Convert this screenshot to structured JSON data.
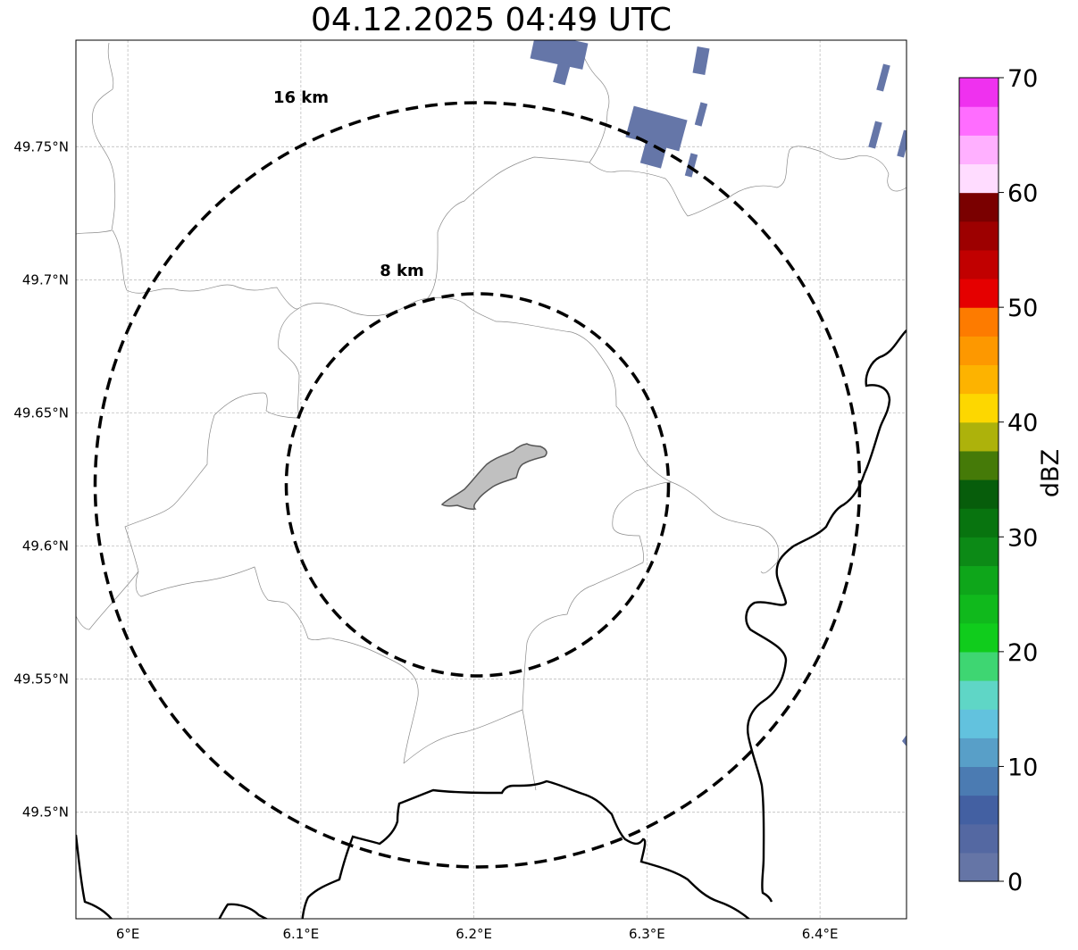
{
  "title": "04.12.2025 04:49 UTC",
  "map": {
    "lon_ticks": [
      {
        "value": 6.0,
        "label": "6°E"
      },
      {
        "value": 6.1,
        "label": "6.1°E"
      },
      {
        "value": 6.2,
        "label": "6.2°E"
      },
      {
        "value": 6.3,
        "label": "6.3°E"
      },
      {
        "value": 6.4,
        "label": "6.4°E"
      }
    ],
    "lat_ticks": [
      {
        "value": 49.75,
        "label": "49.75°N"
      },
      {
        "value": 49.7,
        "label": "49.7°N"
      },
      {
        "value": 49.65,
        "label": "49.65°N"
      },
      {
        "value": 49.6,
        "label": "49.6°N"
      },
      {
        "value": 49.55,
        "label": "49.55°N"
      },
      {
        "value": 49.5,
        "label": "49.5°N"
      }
    ],
    "extent": {
      "lon_min": 5.97,
      "lon_max": 6.45,
      "lat_min": 49.46,
      "lat_max": 49.79
    },
    "grid": true,
    "range_rings": [
      {
        "label": "16 km",
        "radius_km": 16
      },
      {
        "label": "8 km",
        "radius_km": 8
      }
    ],
    "radar_center": {
      "lon": 6.202,
      "lat": 49.623
    },
    "echo_color": "#6576a8"
  },
  "colorbar": {
    "label": "dBZ",
    "min": 0,
    "max": 70,
    "ticks": [
      {
        "value": 0,
        "label": "0"
      },
      {
        "value": 10,
        "label": "10"
      },
      {
        "value": 20,
        "label": "20"
      },
      {
        "value": 30,
        "label": "30"
      },
      {
        "value": 40,
        "label": "40"
      },
      {
        "value": 50,
        "label": "50"
      },
      {
        "value": 60,
        "label": "60"
      },
      {
        "value": 70,
        "label": "70"
      }
    ],
    "colors": [
      "#6575a6",
      "#5468a2",
      "#4360a2",
      "#4b7bb2",
      "#589fc8",
      "#62c2de",
      "#5fd6c6",
      "#3ed672",
      "#10cc1c",
      "#10b91c",
      "#0ea61a",
      "#0c8a16",
      "#08740f",
      "#075d0b",
      "#457a08",
      "#adb20b",
      "#fdd700",
      "#fdb300",
      "#fd9800",
      "#fd7b00",
      "#e50000",
      "#c10000",
      "#9d0000",
      "#7a0000",
      "#ffdcff",
      "#ffb0ff",
      "#ff6dff",
      "#ef31ef"
    ]
  }
}
